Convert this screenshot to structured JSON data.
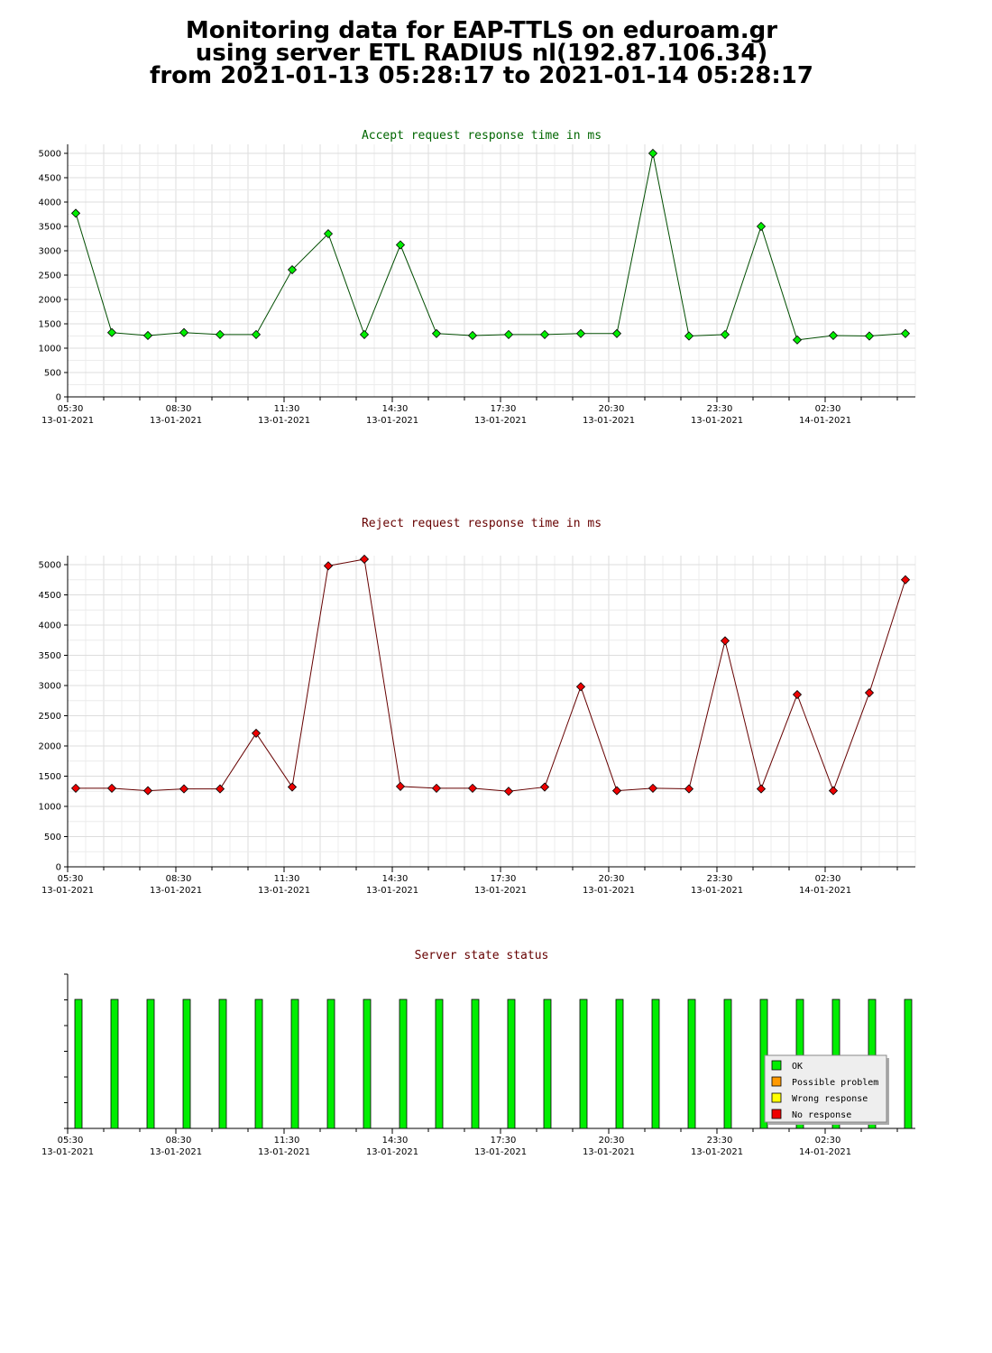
{
  "header": {
    "line1": "Monitoring data for EAP-TTLS on eduroam.gr",
    "line2": "using server ETL RADIUS nl(192.87.106.34)",
    "line3": "from 2021-01-13 05:28:17 to 2021-01-14 05:28:17"
  },
  "x_axis": {
    "ticks": [
      {
        "time": "05:30",
        "date": "13-01-2021"
      },
      {
        "time": "08:30",
        "date": "13-01-2021"
      },
      {
        "time": "11:30",
        "date": "13-01-2021"
      },
      {
        "time": "14:30",
        "date": "13-01-2021"
      },
      {
        "time": "17:30",
        "date": "13-01-2021"
      },
      {
        "time": "20:30",
        "date": "13-01-2021"
      },
      {
        "time": "23:30",
        "date": "13-01-2021"
      },
      {
        "time": "02:30",
        "date": "14-01-2021"
      }
    ]
  },
  "legend": {
    "items": [
      {
        "label": "OK",
        "color": "#00ee00"
      },
      {
        "label": "Possible problem",
        "color": "#ff9900"
      },
      {
        "label": "Wrong response",
        "color": "#ffff00"
      },
      {
        "label": "No response",
        "color": "#ee0000"
      }
    ]
  },
  "chart_data": [
    {
      "type": "line",
      "title": "Accept request response time in ms",
      "title_color": "#006600",
      "line_color": "#004d00",
      "marker_color": "#00ee00",
      "ylim": [
        0,
        5000
      ],
      "yticks": [
        0,
        500,
        1000,
        1500,
        2000,
        2500,
        3000,
        3500,
        4000,
        4500,
        5000
      ],
      "grid": true,
      "x_hours": [
        0.0,
        1.0,
        2.0,
        3.0,
        4.0,
        5.0,
        6.0,
        7.0,
        8.0,
        9.0,
        10.0,
        11.0,
        12.0,
        13.0,
        14.0,
        15.0,
        16.0,
        17.0,
        18.0,
        19.0,
        20.0,
        21.0,
        22.0,
        23.0
      ],
      "values": [
        3770,
        1320,
        1260,
        1320,
        1280,
        1280,
        2610,
        3350,
        1280,
        3120,
        1300,
        1260,
        1280,
        1280,
        1300,
        1300,
        5000,
        1250,
        1280,
        3500,
        1170,
        1260,
        1250,
        1300
      ]
    },
    {
      "type": "line",
      "title": "Reject request response time in ms",
      "title_color": "#660000",
      "line_color": "#660000",
      "marker_color": "#ee0000",
      "ylim": [
        0,
        5000
      ],
      "yticks": [
        0,
        500,
        1000,
        1500,
        2000,
        2500,
        3000,
        3500,
        4000,
        4500,
        5000
      ],
      "grid": true,
      "x_hours": [
        0.0,
        1.0,
        2.0,
        3.0,
        4.0,
        5.0,
        6.0,
        7.0,
        8.0,
        9.0,
        10.0,
        11.0,
        12.0,
        13.0,
        14.0,
        15.0,
        16.0,
        17.0,
        18.0,
        19.0,
        20.0,
        21.0,
        22.0,
        23.0
      ],
      "values": [
        1300,
        1300,
        1260,
        1290,
        1290,
        2210,
        1320,
        4980,
        5090,
        1330,
        1300,
        1300,
        1250,
        1320,
        2980,
        1260,
        1300,
        1290,
        3740,
        1290,
        2850,
        1260,
        2880,
        4750
      ]
    },
    {
      "type": "bar",
      "title": "Server state status",
      "title_color": "#660000",
      "legend_position": "bottom-right",
      "x_hours": [
        0.0,
        1.0,
        2.0,
        3.0,
        4.0,
        5.0,
        6.0,
        7.0,
        8.0,
        9.0,
        10.0,
        11.0,
        12.0,
        13.0,
        14.0,
        15.0,
        16.0,
        17.0,
        18.0,
        19.0,
        20.0,
        21.0,
        22.0,
        23.0
      ],
      "states": [
        "OK",
        "OK",
        "OK",
        "OK",
        "OK",
        "OK",
        "OK",
        "OK",
        "OK",
        "OK",
        "OK",
        "OK",
        "OK",
        "OK",
        "OK",
        "OK",
        "OK",
        "OK",
        "OK",
        "OK",
        "OK",
        "OK",
        "OK",
        "OK"
      ]
    }
  ]
}
